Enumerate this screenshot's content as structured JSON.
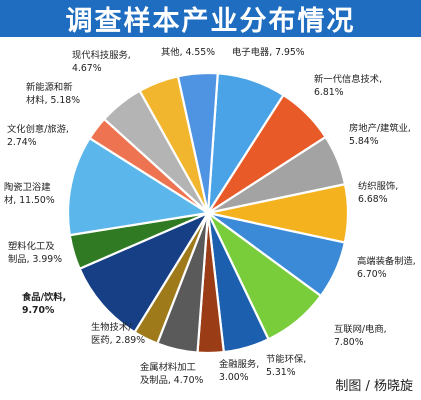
{
  "title": "调查样本产业分布情况",
  "credit": "制图 / 杨晓旋",
  "chart_data": {
    "type": "pie",
    "title": "调查样本产业分布情况",
    "slices": [
      {
        "name": "电子电器",
        "value": 7.95,
        "label_lines": [
          "电子电器, 7.95%"
        ],
        "color": "#4aa3e6"
      },
      {
        "name": "新一代信息技术",
        "value": 6.81,
        "label_lines": [
          "新一代信息技术,",
          "6.81%"
        ],
        "color": "#e85a28"
      },
      {
        "name": "房地产/建筑业",
        "value": 5.84,
        "label_lines": [
          "房地产/建筑业,",
          "5.84%"
        ],
        "color": "#a3a3a3"
      },
      {
        "name": "纺织服饰",
        "value": 6.68,
        "label_lines": [
          "纺织服饰,",
          "6.68%"
        ],
        "color": "#f4b21e"
      },
      {
        "name": "高端装备制造",
        "value": 6.7,
        "label_lines": [
          "高端装备制造,",
          "6.70%"
        ],
        "color": "#3a8ad8"
      },
      {
        "name": "互联网/电商",
        "value": 7.8,
        "label_lines": [
          "互联网/电商,",
          "7.80%"
        ],
        "color": "#79cc3a"
      },
      {
        "name": "节能环保",
        "value": 5.31,
        "label_lines": [
          "节能环保,",
          "5.31%"
        ],
        "color": "#1c5fae"
      },
      {
        "name": "金融服务",
        "value": 3.0,
        "label_lines": [
          "金融服务,",
          "3.00%"
        ],
        "color": "#9a3c16"
      },
      {
        "name": "金属材料加工及制品",
        "value": 4.7,
        "label_lines": [
          "金属材料加工",
          "及制品, 4.70%"
        ],
        "color": "#5a5a5a"
      },
      {
        "name": "生物技术/医药",
        "value": 2.89,
        "label_lines": [
          "生物技术/",
          "医药, 2.89%"
        ],
        "color": "#9e7a1a"
      },
      {
        "name": "食品/饮料",
        "value": 9.7,
        "label_lines": [
          "食品/饮料,",
          "9.70%"
        ],
        "color": "#163f86",
        "bold": true
      },
      {
        "name": "塑料化工及制品",
        "value": 3.99,
        "label_lines": [
          "塑料化工及",
          "制品, 3.99%"
        ],
        "color": "#2f7a22"
      },
      {
        "name": "陶瓷卫浴建材",
        "value": 11.5,
        "label_lines": [
          "陶瓷卫浴建",
          "材, 11.50%"
        ],
        "color": "#5bb6ec"
      },
      {
        "name": "文化创意/旅游",
        "value": 2.74,
        "label_lines": [
          "文化创意/旅游,",
          "2.74%"
        ],
        "color": "#ee7350"
      },
      {
        "name": "新能源和新材料",
        "value": 5.18,
        "label_lines": [
          "新能源和新",
          "材料, 5.18%"
        ],
        "color": "#b4b4b4"
      },
      {
        "name": "现代科技服务",
        "value": 4.67,
        "label_lines": [
          "现代科技服务,",
          "4.67%"
        ],
        "color": "#f2b52e"
      },
      {
        "name": "其他",
        "value": 4.55,
        "label_lines": [
          "其他, 4.55%"
        ],
        "color": "#4f93e3"
      }
    ]
  }
}
